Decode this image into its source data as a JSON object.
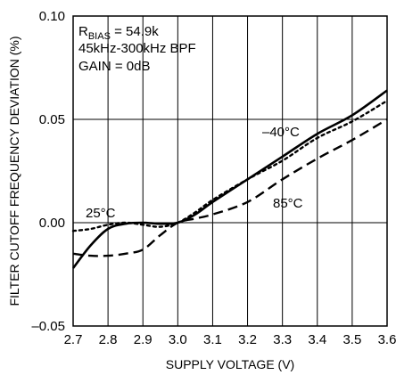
{
  "chart_data": {
    "type": "line",
    "xlabel": "SUPPLY VOLTAGE (V)",
    "ylabel": "FILTER CUTOFF FREQUENCY DEVIATION (%)",
    "xlim": [
      2.7,
      3.6
    ],
    "ylim": [
      -0.05,
      0.1
    ],
    "x_ticks": [
      "2.7",
      "2.8",
      "2.9",
      "3.0",
      "3.1",
      "3.2",
      "3.3",
      "3.4",
      "3.5",
      "3.6"
    ],
    "y_ticks": [
      "–0.05",
      "0.00",
      "0.05",
      "0.10"
    ],
    "grid": true,
    "annotation": {
      "bias_prefix": "R",
      "bias_sub": "BIAS",
      "bias_value": " = 54.9k",
      "filter": "45kHz-300kHz BPF",
      "gain": "GAIN = 0dB"
    },
    "series": [
      {
        "name": "25°C",
        "style": "solid",
        "x": [
          2.7,
          2.75,
          2.8,
          2.85,
          2.9,
          2.95,
          3.0,
          3.05,
          3.1,
          3.2,
          3.3,
          3.4,
          3.5,
          3.6
        ],
        "y": [
          -0.022,
          -0.011,
          -0.003,
          -0.0005,
          0.0,
          -0.0005,
          0.0,
          0.004,
          0.01,
          0.021,
          0.032,
          0.043,
          0.052,
          0.064
        ]
      },
      {
        "name": "–40°C",
        "style": "dotted",
        "x": [
          2.7,
          2.75,
          2.8,
          2.85,
          2.9,
          2.95,
          3.0,
          3.05,
          3.1,
          3.2,
          3.3,
          3.4,
          3.5,
          3.6
        ],
        "y": [
          -0.004,
          -0.003,
          -0.001,
          0.0,
          -0.001,
          -0.002,
          0.0,
          0.005,
          0.011,
          0.021,
          0.03,
          0.041,
          0.049,
          0.059
        ]
      },
      {
        "name": "85°C",
        "style": "dashed",
        "x": [
          2.7,
          2.75,
          2.8,
          2.85,
          2.9,
          2.95,
          3.0,
          3.05,
          3.1,
          3.2,
          3.3,
          3.4,
          3.5,
          3.6
        ],
        "y": [
          -0.015,
          -0.016,
          -0.016,
          -0.015,
          -0.013,
          -0.006,
          0.0,
          0.002,
          0.004,
          0.01,
          0.021,
          0.031,
          0.04,
          0.05
        ]
      }
    ]
  }
}
